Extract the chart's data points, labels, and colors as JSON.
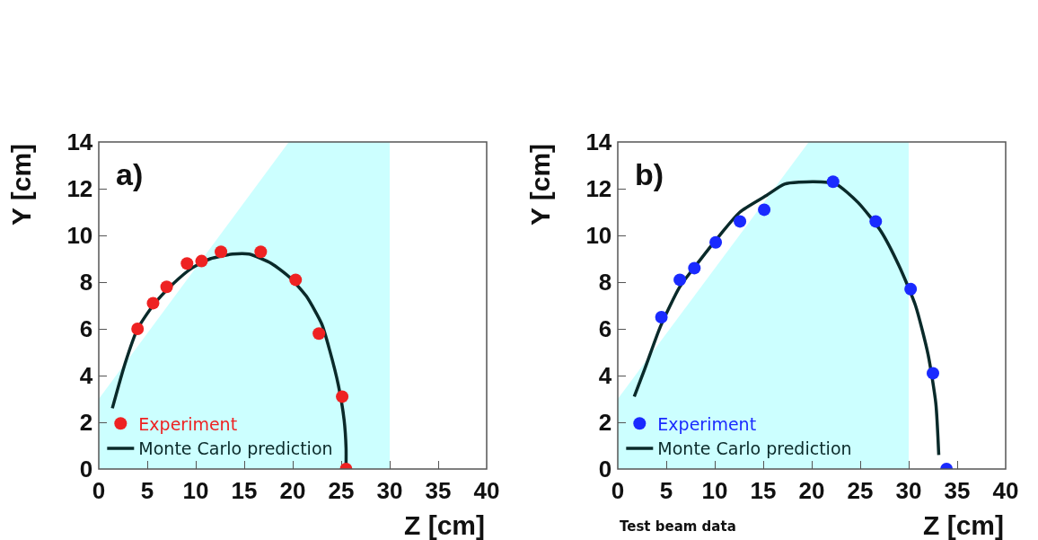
{
  "chart_data": [
    {
      "type": "scatter",
      "xlabel": "Z [cm]",
      "ylabel": "Y [cm]",
      "annotations": [
        "a)"
      ],
      "xlim": [
        0,
        40
      ],
      "ylim": [
        0,
        14
      ],
      "xticks": [
        0,
        5,
        10,
        15,
        20,
        25,
        30,
        35,
        40
      ],
      "yticks": [
        0,
        2,
        4,
        6,
        8,
        10,
        12,
        14
      ],
      "grid": false,
      "legend": "bottom left",
      "series": [
        {
          "type": "area",
          "color": "#ccffff",
          "x": [
            0,
            19.6,
            30
          ],
          "values": [
            3,
            14,
            14
          ],
          "marker": "none"
        },
        {
          "name": "Experiment",
          "color": "#ee2222",
          "marker": "circle",
          "x": [
            4.0,
            5.6,
            7.0,
            9.1,
            10.6,
            12.6,
            16.7,
            20.3,
            22.7,
            25.1,
            25.5
          ],
          "values": [
            6.0,
            7.1,
            7.8,
            8.8,
            8.9,
            9.3,
            9.3,
            8.1,
            5.8,
            3.1,
            0
          ]
        },
        {
          "type": "line",
          "name": "Monte Carlo prediction",
          "color": "#0a2a2a",
          "marker": "none",
          "line_style": "solid",
          "x": [
            1.4,
            2.7,
            4.0,
            5.6,
            7.6,
            9.6,
            11.5,
            13.8,
            15.5,
            17.8,
            19.7,
            21.4,
            23.0,
            23.8,
            24.7,
            25.3,
            25.5,
            25.5
          ],
          "values": [
            2.6,
            4.5,
            6.0,
            7.0,
            7.9,
            8.6,
            9.0,
            9.2,
            9.2,
            8.8,
            8.2,
            7.4,
            6.2,
            5.1,
            3.6,
            2.1,
            0.9,
            0.2
          ]
        }
      ]
    },
    {
      "type": "scatter",
      "xlabel": "Z [cm]",
      "ylabel": "Y [cm]",
      "annotations": [
        "b)",
        "Test beam data"
      ],
      "xlim": [
        0,
        40
      ],
      "ylim": [
        0,
        14
      ],
      "xticks": [
        0,
        5,
        10,
        15,
        20,
        25,
        30,
        35,
        40
      ],
      "yticks": [
        0,
        2,
        4,
        6,
        8,
        10,
        12,
        14
      ],
      "grid": false,
      "legend": "bottom left",
      "series": [
        {
          "type": "area",
          "color": "#ccffff",
          "x": [
            0,
            19.7,
            30
          ],
          "values": [
            3,
            14,
            14
          ],
          "marker": "none"
        },
        {
          "name": "Experiment",
          "color": "#1a2aff",
          "marker": "circle",
          "x": [
            4.5,
            6.4,
            7.9,
            10.1,
            12.6,
            15.1,
            22.2,
            26.6,
            30.2,
            32.5,
            33.9
          ],
          "values": [
            6.5,
            8.1,
            8.6,
            9.7,
            10.6,
            11.1,
            12.3,
            10.6,
            7.7,
            4.1,
            0
          ]
        },
        {
          "type": "line",
          "name": "Monte Carlo prediction",
          "color": "#0a2a2a",
          "marker": "none",
          "line_style": "solid",
          "x": [
            1.7,
            2.8,
            4.4,
            6.4,
            8.4,
            10.3,
            12.6,
            15.3,
            17.2,
            20.2,
            22.5,
            24.8,
            27.1,
            29.0,
            30.7,
            32.0,
            32.8,
            33.1
          ],
          "values": [
            3.1,
            4.3,
            6.1,
            7.8,
            8.9,
            9.9,
            11.0,
            11.7,
            12.2,
            12.3,
            12.2,
            11.4,
            10.2,
            8.7,
            7.0,
            4.9,
            2.8,
            0.6
          ]
        }
      ]
    }
  ]
}
